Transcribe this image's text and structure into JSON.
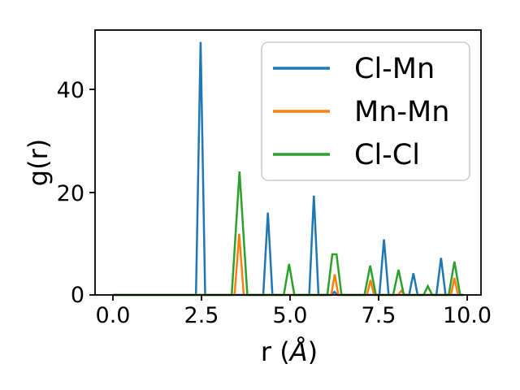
{
  "chart_data": {
    "type": "line",
    "title": "",
    "xlabel": "r (Å)",
    "xlabel_parts": {
      "prefix": "r (",
      "unit": "Å",
      "suffix": ")"
    },
    "ylabel": "g(r)",
    "xlim": [
      -0.5,
      10.4
    ],
    "ylim": [
      0,
      51.5
    ],
    "data_x_range": [
      0.0,
      9.9
    ],
    "grid": false,
    "xticks": {
      "values": [
        0.0,
        2.5,
        5.0,
        7.5,
        10.0
      ],
      "labels": [
        "0.0",
        "2.5",
        "5.0",
        "7.5",
        "10.0"
      ]
    },
    "yticks": {
      "values": [
        0,
        20,
        40
      ],
      "labels": [
        "0",
        "20",
        "40"
      ]
    },
    "legend": {
      "position": "upper right",
      "entries": [
        "Cl-Mn",
        "Mn-Mn",
        "Cl-Cl"
      ]
    },
    "series": [
      {
        "name": "Cl-Mn",
        "color": "#1f77b4",
        "peaks": [
          {
            "r": 2.48,
            "h": 49.2,
            "w": 0.13
          },
          {
            "r": 4.38,
            "h": 16.0,
            "w": 0.13
          },
          {
            "r": 5.68,
            "h": 19.3,
            "w": 0.13
          },
          {
            "r": 6.26,
            "h": 0.6,
            "w": 0.08
          },
          {
            "r": 7.66,
            "h": 10.8,
            "w": 0.13
          },
          {
            "r": 8.49,
            "h": 4.2,
            "w": 0.12
          },
          {
            "r": 9.27,
            "h": 7.2,
            "w": 0.13
          }
        ]
      },
      {
        "name": "Mn-Mn",
        "color": "#ff7f0e",
        "peaks": [
          {
            "r": 3.57,
            "h": 11.9,
            "w": 0.13
          },
          {
            "r": 6.27,
            "h": 4.0,
            "w": 0.1
          },
          {
            "r": 7.28,
            "h": 2.9,
            "w": 0.1
          },
          {
            "r": 8.15,
            "h": 0.8,
            "w": 0.1
          },
          {
            "r": 9.65,
            "h": 3.3,
            "w": 0.1
          }
        ]
      },
      {
        "name": "Cl-Cl",
        "color": "#2ca02c",
        "peaks": [
          {
            "r": 3.58,
            "h": 24.0,
            "w": 0.22
          },
          {
            "r": 4.98,
            "h": 6.0,
            "w": 0.15
          },
          {
            "r": 6.26,
            "h": 7.9,
            "w": 0.2,
            "flat": 0.12
          },
          {
            "r": 7.27,
            "h": 5.7,
            "w": 0.16
          },
          {
            "r": 8.07,
            "h": 4.9,
            "w": 0.15
          },
          {
            "r": 8.9,
            "h": 1.7,
            "w": 0.12
          },
          {
            "r": 9.65,
            "h": 6.5,
            "w": 0.16
          }
        ]
      }
    ]
  }
}
